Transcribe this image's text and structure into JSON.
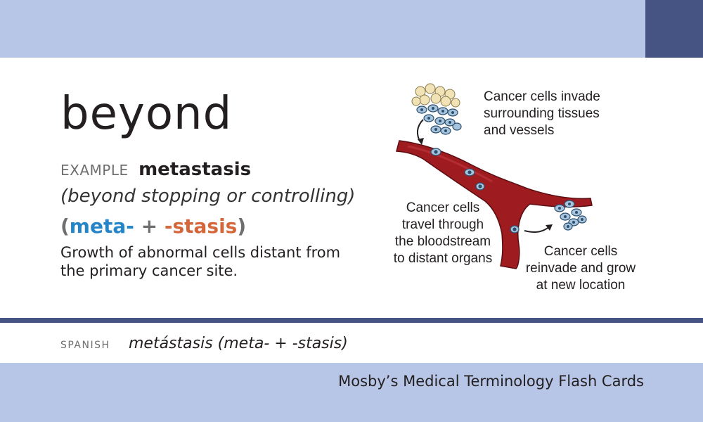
{
  "card": {
    "term": "beyond",
    "example_label": "EXAMPLE",
    "example_word": "metastasis",
    "gloss": "(beyond stopping or controlling)",
    "parts": {
      "open": "(",
      "part1": "meta-",
      "plus": "+",
      "part2": "-stasis",
      "close": ")"
    },
    "definition": "Growth of abnormal cells distant from the primary cancer site.",
    "spanish_label": "SPANISH",
    "spanish": "metástasis (meta- + -stasis)",
    "footer": "Mosby’s Medical Terminology Flash Cards"
  },
  "illustration": {
    "captions": [
      [
        "Cancer cells invade",
        "surrounding tissues",
        "and vessels"
      ],
      [
        "Cancer cells",
        "travel through",
        "the bloodstream",
        "to distant organs"
      ],
      [
        "Cancer cells",
        "reinvade and grow",
        "at new location"
      ]
    ]
  },
  "colors": {
    "band": "#b7c6e6",
    "accent_dark": "#465483",
    "prefix_blue": "#2585c8",
    "suffix_orange": "#d4673a",
    "vessel_red": "#9e1b20"
  }
}
